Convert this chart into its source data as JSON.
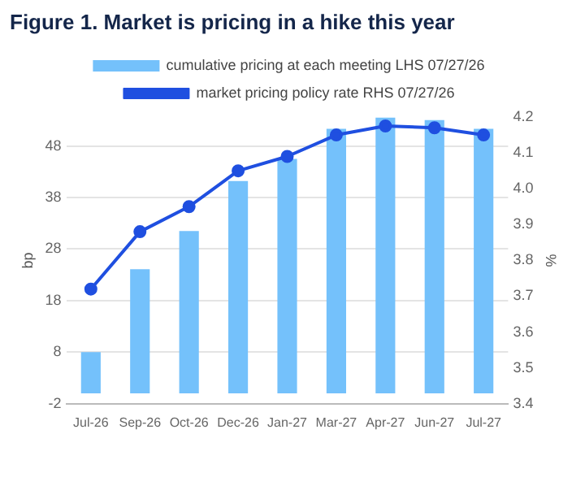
{
  "chart_data": {
    "type": "bar",
    "title": "Figure 1. Market is pricing in a hike this year",
    "categories": [
      "Jul-26",
      "Sep-26",
      "Oct-26",
      "Dec-26",
      "Jan-27",
      "Mar-27",
      "Apr-27",
      "Jun-27",
      "Jul-27"
    ],
    "series": [
      {
        "name": "cumulative pricing at each meeting LHS 07/27/26",
        "type": "bar",
        "color": "#74c1fb",
        "values": [
          8,
          24.1,
          31.5,
          41.2,
          45.5,
          51.3,
          53.5,
          53,
          51.3
        ]
      },
      {
        "name": "market pricing policy rate RHS 07/27/26",
        "type": "line",
        "axis": "y2",
        "color": "#1f4fe0",
        "values": [
          3.72,
          3.88,
          3.95,
          4.05,
          4.09,
          4.15,
          4.175,
          4.17,
          4.15
        ]
      }
    ],
    "ylabel": "bp",
    "y2label": "%",
    "ylim": [
      -2,
      53.6
    ],
    "yticks": [
      -2,
      8,
      18,
      28,
      38,
      48
    ],
    "y2lim": [
      3.4,
      4.2
    ],
    "y2ticks": [
      {
        "value": 3.4,
        "label": "3.4"
      },
      {
        "value": 3.5,
        "label": "3.5"
      },
      {
        "value": 3.6,
        "label": "3.6"
      },
      {
        "value": 3.7,
        "label": "3.7"
      },
      {
        "value": 3.8,
        "label": "3.8"
      },
      {
        "value": 3.9,
        "label": "3.9"
      },
      {
        "value": 4.0,
        "label": "4.0"
      },
      {
        "value": 4.1,
        "label": "4.1"
      },
      {
        "value": 4.2,
        "label": "4.2"
      }
    ],
    "grid": "y",
    "legend": "top",
    "marker": "circle"
  }
}
